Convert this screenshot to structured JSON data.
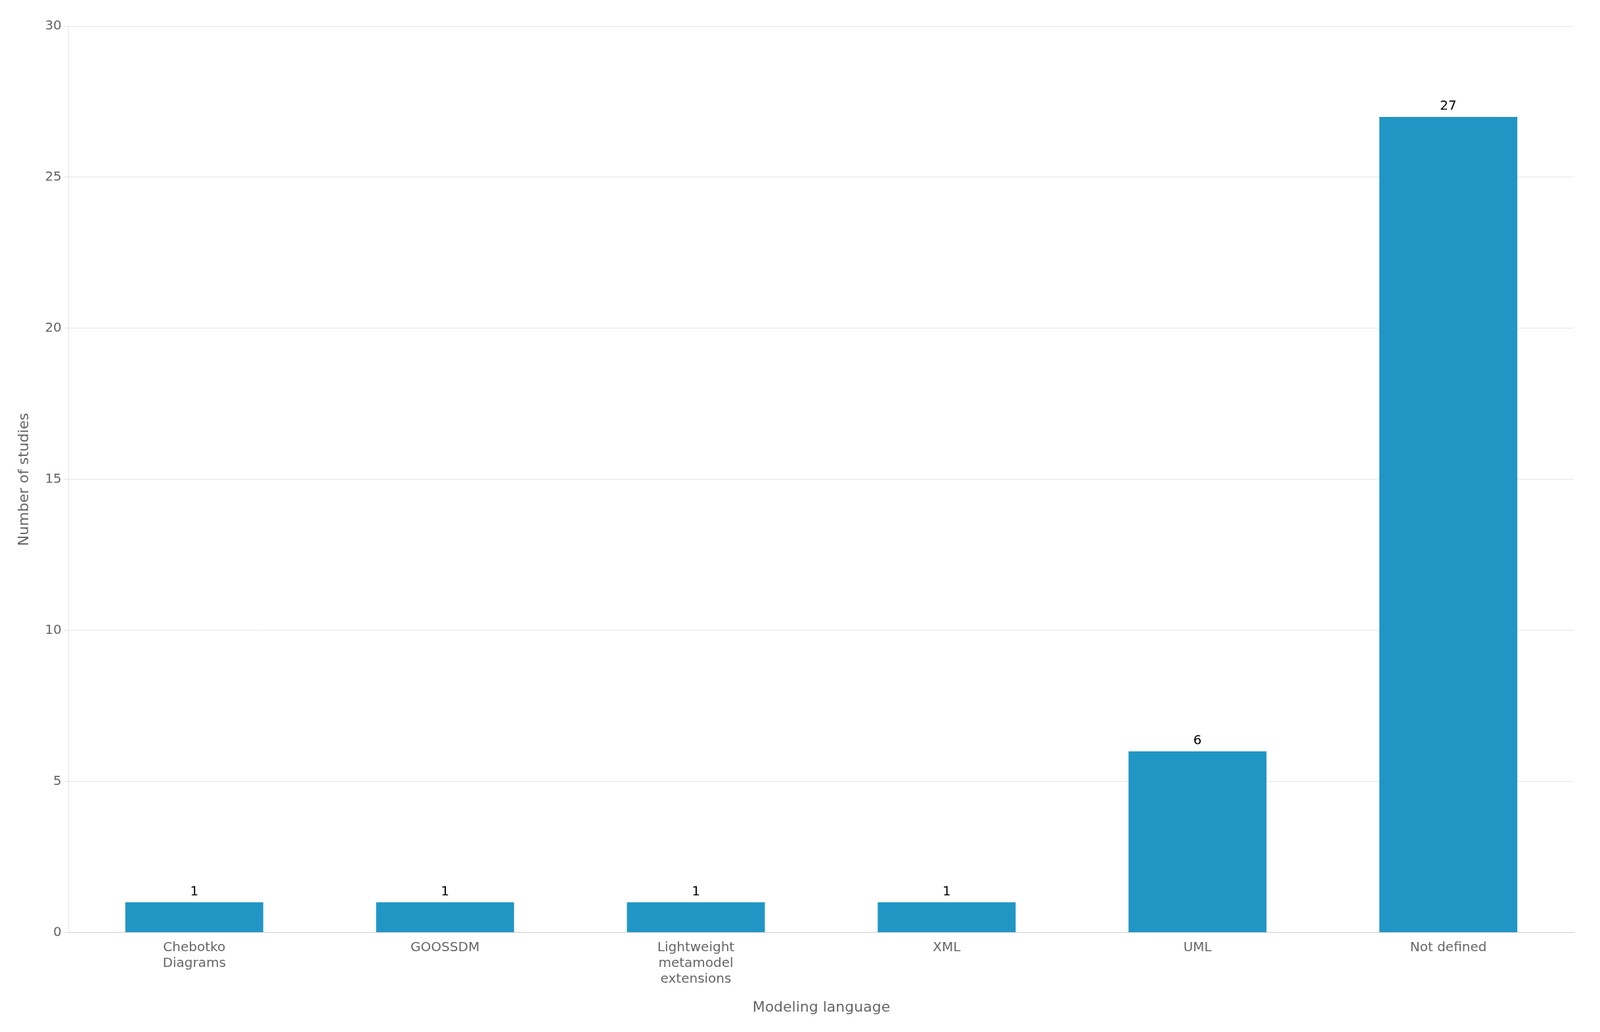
{
  "chart_data": {
    "type": "bar",
    "categories": [
      "Chebotko\nDiagrams",
      "GOOSSDM",
      "Lightweight\nmetamodel\nextensions",
      "XML",
      "UML",
      "Not defined"
    ],
    "values": [
      1,
      1,
      1,
      1,
      6,
      27
    ],
    "color": "#2196C4",
    "xlabel": "Modeling language",
    "ylabel": "Number of studies",
    "ylim": [
      0,
      30
    ],
    "yticks": [
      0,
      5,
      10,
      15,
      20,
      25,
      30
    ],
    "grid": true,
    "data_labels": true
  }
}
